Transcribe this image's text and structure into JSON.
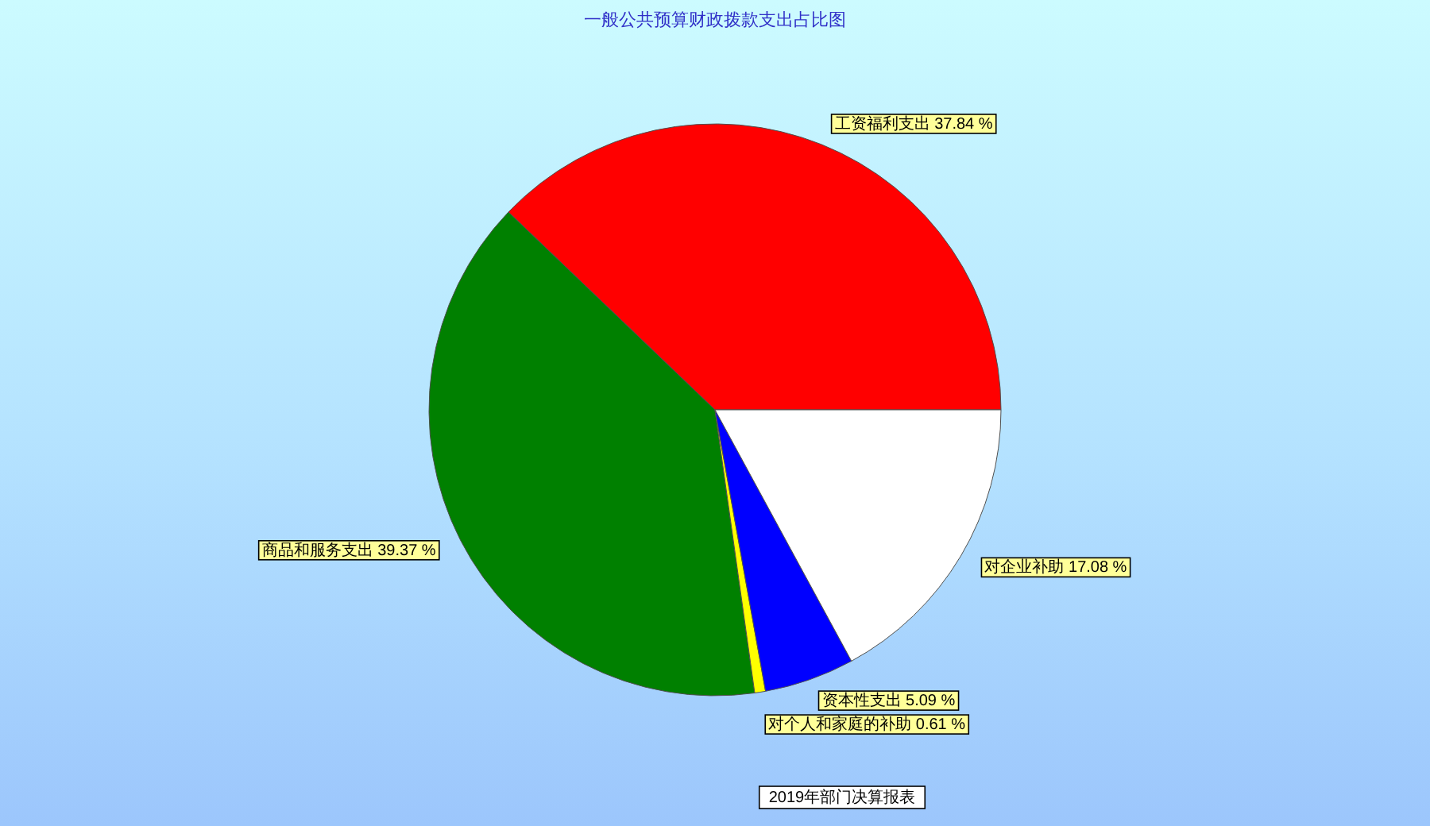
{
  "chart_data": {
    "type": "pie",
    "title": "一般公共预算财政拨款支出占比图",
    "categories": [
      "工资福利支出",
      "商品和服务支出",
      "对个人和家庭的补助",
      "资本性支出",
      "对企业补助"
    ],
    "values": [
      37.84,
      39.37,
      0.61,
      5.09,
      17.08
    ],
    "colors": [
      "#ff0000",
      "#008000",
      "#ffff00",
      "#0000ff",
      "#ffffff"
    ],
    "value_labels": [
      "37.84 %",
      "39.37 %",
      "0.61 %",
      "5.09 %",
      "17.08 %"
    ],
    "annotations": [
      "2019年部门决算报表"
    ]
  }
}
